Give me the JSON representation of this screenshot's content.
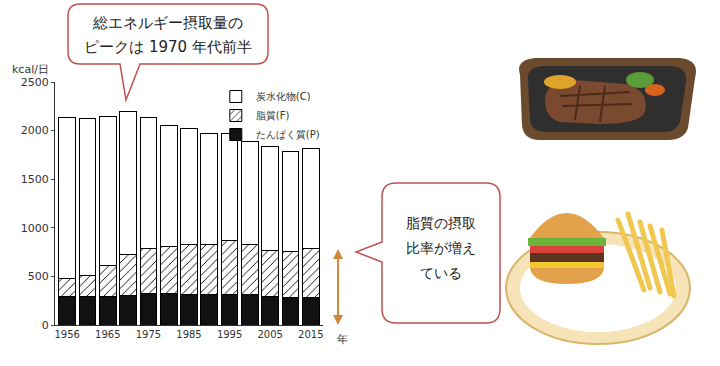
{
  "chart_data": {
    "type": "bar",
    "stacked": true,
    "x_label": "年",
    "y_label": "kcal/日",
    "categories": [
      "1956",
      null,
      "1965",
      null,
      "1975",
      null,
      "1985",
      null,
      "1995",
      null,
      "2005",
      null,
      "2015"
    ],
    "series": [
      {
        "name": "たんぱく質(P)",
        "color": "#111111",
        "values": [
          290,
          290,
          290,
          300,
          320,
          320,
          310,
          310,
          310,
          310,
          295,
          280,
          285
        ]
      },
      {
        "name": "脂質(F)",
        "color": "#ffffff",
        "marker": "hatch",
        "values": [
          188,
          220,
          320,
          430,
          470,
          490,
          520,
          520,
          560,
          520,
          475,
          480,
          505
        ]
      },
      {
        "name": "炭水化物(C)",
        "color": "#ffffff",
        "values": [
          1652,
          1610,
          1530,
          1470,
          1340,
          1240,
          1190,
          1140,
          1105,
          1060,
          1070,
          1030,
          1030
        ]
      }
    ],
    "ylim": [
      0,
      2500
    ],
    "yticks": [
      0,
      500,
      1000,
      1500,
      2000,
      2500
    ],
    "grid": false,
    "legend": "upper right",
    "annotations": [
      {
        "text": [
          "総エネルギー摂取量の",
          "ピークは 1970 年代前半"
        ]
      },
      {
        "text": [
          "脂質の摂取",
          "比率が増え",
          "ている"
        ]
      }
    ]
  }
}
